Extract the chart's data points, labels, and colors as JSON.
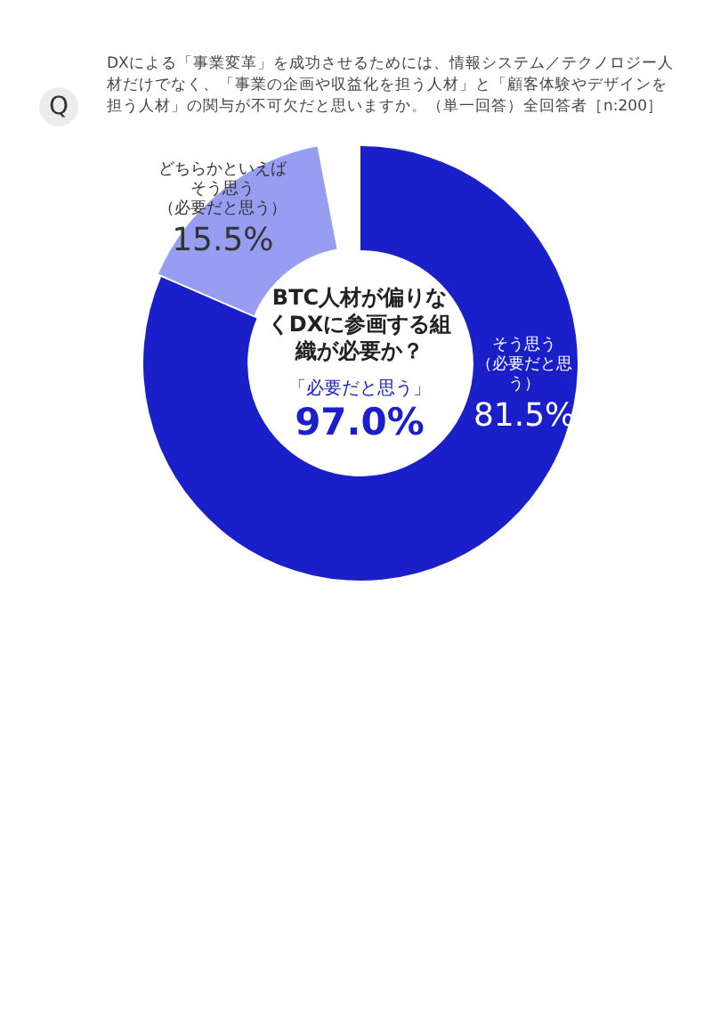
{
  "chart_data": {
    "type": "donut",
    "title": "DXによる「事業変革」を成功させるためには、情報システム／テクノロジー人材だけでなく、「事業の企画や収益化を担う人材」と「顧客体験やデザインを担う人材」の関与が不可欠だと思いますか。（単一回答）全回答者［n:200］",
    "subtitle": "BTC人材が偏りなくDXに参画する組織が必要か？",
    "categories": [
      "そう思う（必要だと思う）",
      "どちらかといえばそう思う（必要だと思う）"
    ],
    "values": [
      81.5,
      15.5
    ],
    "colors": [
      "#1a1fc9",
      "#979df0"
    ],
    "value_labels": [
      "81.5%",
      "15.5%"
    ],
    "annotations": [
      "Q",
      "「必要だと思う」",
      "97.0%"
    ],
    "legend": false
  }
}
